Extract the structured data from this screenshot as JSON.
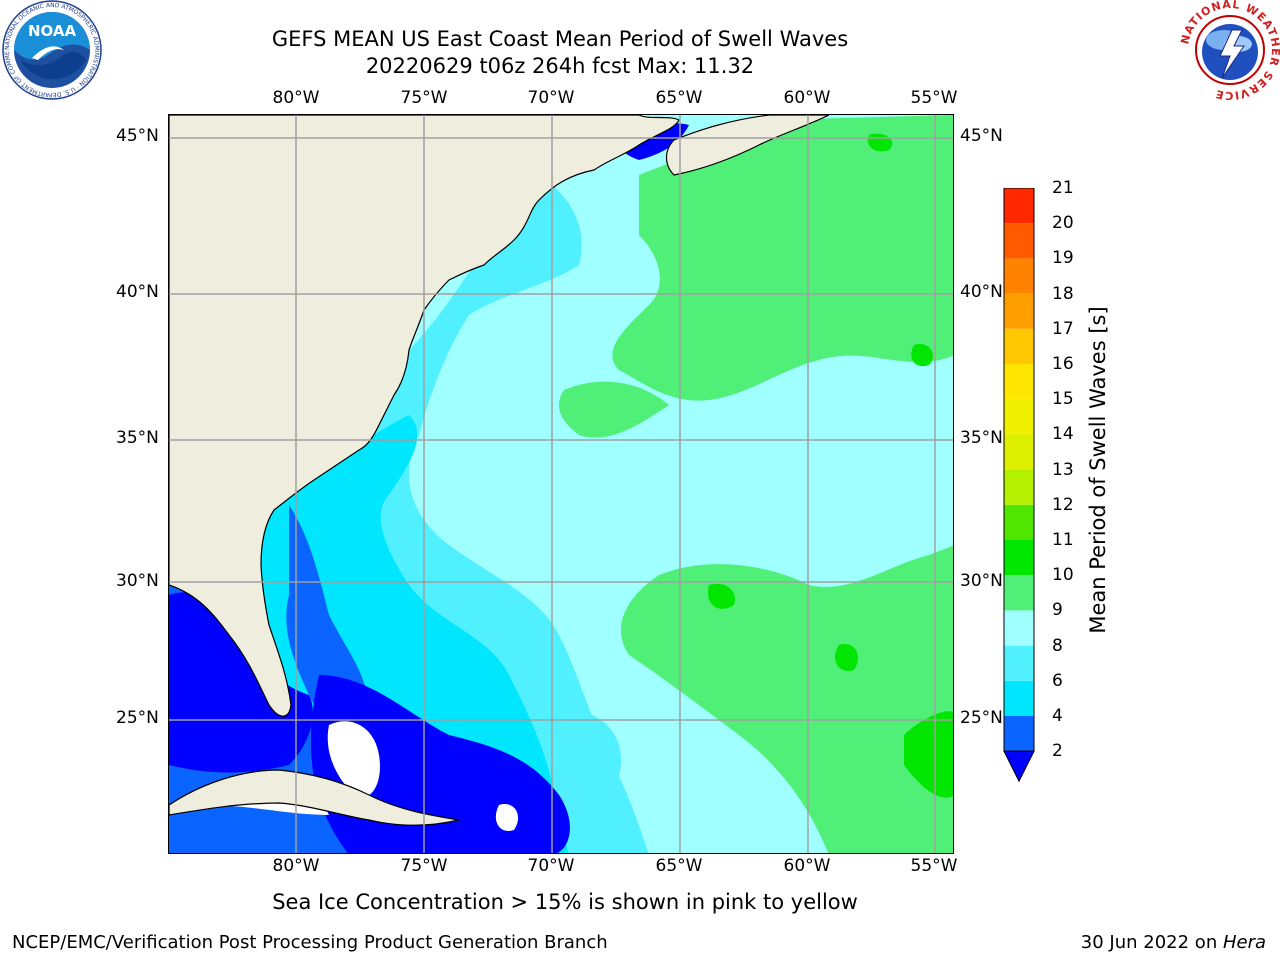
{
  "title": {
    "line1": "GEFS MEAN US East Coast Mean Period of Swell Waves",
    "line2": "20220629 t06z 264h fcst   Max: 11.32"
  },
  "longitude_labels": [
    "80°W",
    "75°W",
    "70°W",
    "65°W",
    "60°W",
    "55°W"
  ],
  "latitude_labels": [
    "45°N",
    "40°N",
    "35°N",
    "30°N",
    "25°N"
  ],
  "colorbar": {
    "label": "Mean Period of Swell Waves [s]",
    "ticks": [
      "2",
      "4",
      "6",
      "8",
      "9",
      "10",
      "11",
      "12",
      "13",
      "14",
      "15",
      "16",
      "17",
      "18",
      "19",
      "20",
      "21"
    ],
    "colors": [
      "#0a64ff",
      "#00e6ff",
      "#50f0ff",
      "#a0ffff",
      "#50f078",
      "#00e600",
      "#50e600",
      "#b4f000",
      "#dcf000",
      "#f0f000",
      "#ffe600",
      "#ffc800",
      "#ffa000",
      "#ff8200",
      "#ff5a00",
      "#ff2800"
    ],
    "extend_color": "#0000ff"
  },
  "map_colors": {
    "land": "#efedde",
    "deep_blue": "#0000ff",
    "blue": "#0a64ff",
    "cyan": "#00e6ff",
    "light_cyan": "#50f0ff",
    "pale_cyan": "#a0ffff",
    "green": "#50f078",
    "bright_green": "#00e600",
    "grid": "#a0a0a0"
  },
  "note": "Sea Ice Concentration > 15% is shown in pink to yellow",
  "footer": {
    "left": "NCEP/EMC/Verification Post Processing Product Generation Branch",
    "date": "30 Jun 2022 on ",
    "machine": "Hera"
  },
  "logos": {
    "noaa_icon": "noaa-logo",
    "nws_icon": "nws-logo",
    "noaa_text": "NOAA",
    "noaa_ring": "NATIONAL OCEANIC AND ATMOSPHERIC ADMINISTRATION · U.S. DEPARTMENT OF COMMERCE",
    "nws_ring": "NATIONAL WEATHER SERVICE"
  }
}
